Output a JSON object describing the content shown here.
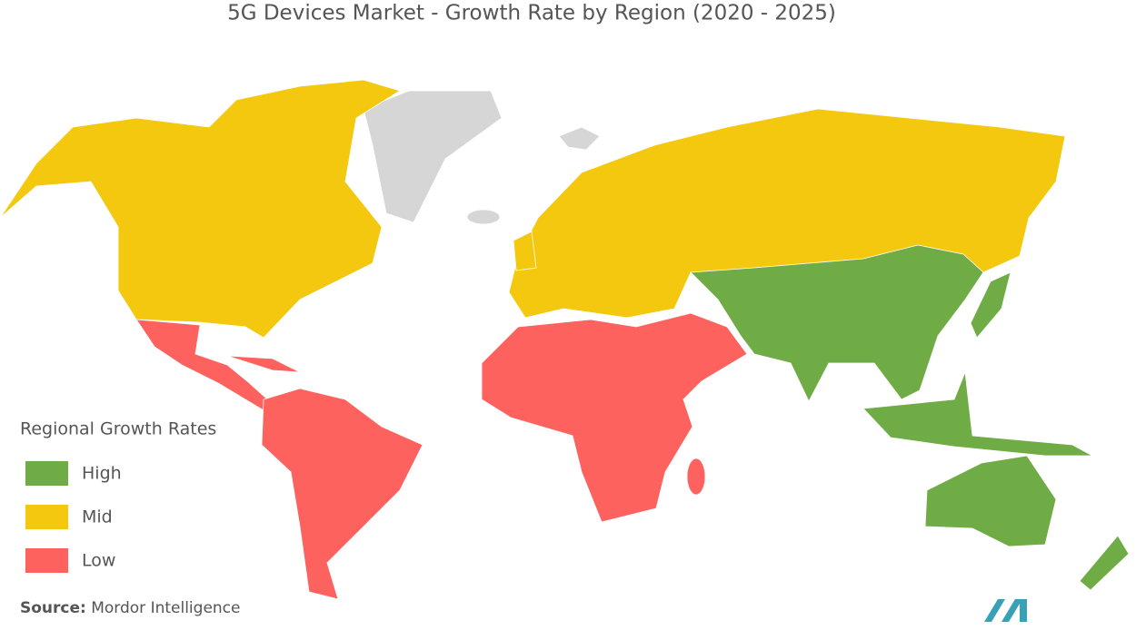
{
  "title": "5G Devices Market - Growth Rate by Region (2020 - 2025)",
  "legend": {
    "title": "Regional Growth Rates",
    "items": [
      {
        "label": "High",
        "color": "#6fac46"
      },
      {
        "label": "Mid",
        "color": "#f4c80e"
      },
      {
        "label": "Low",
        "color": "#fd625e"
      }
    ]
  },
  "source": {
    "label": "Source:",
    "text": "Mordor Intelligence"
  }
}
